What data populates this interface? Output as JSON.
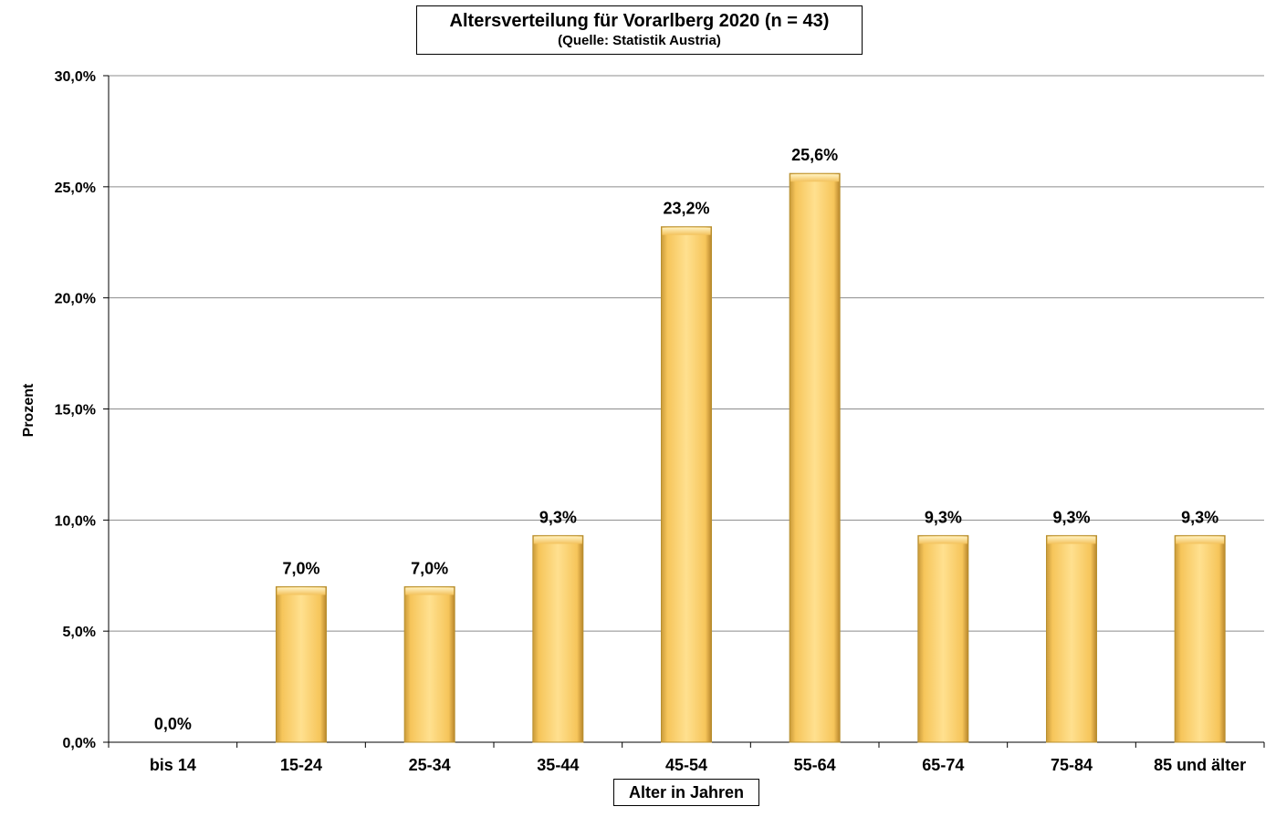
{
  "chart_data": {
    "type": "bar",
    "title": "Altersverteilung für Vorarlberg 2020 (n = 43)",
    "subtitle": "(Quelle: Statistik Austria)",
    "xlabel": "Alter in Jahren",
    "ylabel": "Prozent",
    "categories": [
      "bis 14",
      "15-24",
      "25-34",
      "35-44",
      "45-54",
      "55-64",
      "65-74",
      "75-84",
      "85 und älter"
    ],
    "values": [
      0.0,
      7.0,
      7.0,
      9.3,
      23.2,
      25.6,
      9.3,
      9.3,
      9.3
    ],
    "data_labels": [
      "0,0%",
      "7,0%",
      "7,0%",
      "9,3%",
      "23,2%",
      "25,6%",
      "9,3%",
      "9,3%",
      "9,3%"
    ],
    "ylim": [
      0,
      30
    ],
    "yticks": [
      0,
      5,
      10,
      15,
      20,
      25,
      30
    ],
    "ytick_labels": [
      "0,0%",
      "5,0%",
      "10,0%",
      "15,0%",
      "20,0%",
      "25,0%",
      "30,0%"
    ],
    "grid": true,
    "legend": "none",
    "bar_color": "#FFD36E",
    "bar_edge_color": "#B8902F"
  }
}
